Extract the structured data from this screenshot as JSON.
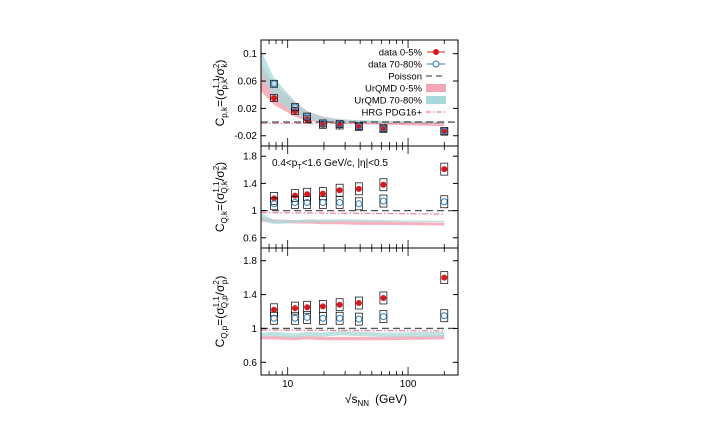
{
  "chart_data": [
    {
      "type": "scatter",
      "ylabel_main": "C",
      "ylabel_sub": "p,k",
      "ylabel_formula": "=(σ",
      "ylabel_sup": "1,1",
      "ylabel_sub2": "p,k",
      "ylabel_tail": "/σ",
      "ylabel_sup2": "2",
      "ylabel_sub3": "k",
      "ylabel_close": ")",
      "ylim": [
        -0.035,
        0.12
      ],
      "yticks": [
        "0.1",
        "0.06",
        "0.02",
        "-0.02"
      ],
      "ytick_values": [
        0.1,
        0.06,
        0.02,
        -0.02
      ],
      "baseline": 0,
      "annotation": "",
      "legend": {
        "data_0_5": "data 0-5%",
        "data_70_80": "data 70-80%",
        "poisson": "Poisson",
        "urqmd_0_5": "UrQMD 0-5%",
        "urqmd_70_80": "UrQMD 70-80%",
        "hrg": "HRG PDG16+"
      },
      "x": [
        7.7,
        11.5,
        14.5,
        19.6,
        27,
        39,
        62.4,
        200
      ],
      "series": [
        {
          "name": "data 0-5%",
          "values": [
            0.035,
            0.016,
            0.004,
            -0.004,
            -0.005,
            -0.007,
            -0.01,
            -0.014
          ]
        },
        {
          "name": "data 70-80%",
          "values": [
            0.056,
            0.022,
            0.008,
            -0.002,
            -0.003,
            -0.006,
            -0.009,
            -0.013
          ]
        }
      ],
      "bands": [
        {
          "name": "UrQMD 0-5%",
          "x": [
            6,
            7.7,
            11.5,
            14.5,
            19.6,
            27,
            39,
            62.4,
            200
          ],
          "low": [
            0.045,
            0.025,
            0.008,
            0.002,
            -0.001,
            -0.002,
            -0.003,
            -0.004,
            -0.006
          ],
          "high": [
            0.085,
            0.055,
            0.03,
            0.016,
            0.008,
            0.004,
            0.002,
            0.001,
            0.0
          ]
        },
        {
          "name": "UrQMD 70-80%",
          "x": [
            6,
            7.7,
            11.5,
            14.5,
            19.6,
            27,
            39,
            62.4,
            200
          ],
          "low": [
            0.07,
            0.035,
            0.012,
            0.004,
            0.0,
            -0.001,
            -0.001,
            -0.002,
            -0.003
          ],
          "high": [
            0.105,
            0.065,
            0.03,
            0.015,
            0.008,
            0.004,
            0.003,
            0.002,
            0.001
          ]
        }
      ],
      "hrg": {
        "x": [
          6,
          200
        ],
        "values": [
          -0.002,
          -0.002
        ]
      }
    },
    {
      "type": "scatter",
      "ylabel_main": "C",
      "ylabel_sub": "Q,k",
      "ylabel_formula": "=(σ",
      "ylabel_sup": "1,1",
      "ylabel_sub2": "Q,k",
      "ylabel_tail": "/σ",
      "ylabel_sup2": "2",
      "ylabel_sub3": "k",
      "ylabel_close": ")",
      "ylim": [
        0.45,
        1.95
      ],
      "yticks": [
        "1.8",
        "1.4",
        "1",
        "0.6"
      ],
      "ytick_values": [
        1.8,
        1.4,
        1.0,
        0.6
      ],
      "baseline": 1,
      "annotation": "0.4<p",
      "annotation_sub": "T",
      "annotation_tail": "<1.6 GeV/c, |η|<0.5",
      "x": [
        7.7,
        11.5,
        14.5,
        19.6,
        27,
        39,
        62.4,
        200
      ],
      "series": [
        {
          "name": "data 0-5%",
          "values": [
            1.18,
            1.22,
            1.24,
            1.25,
            1.3,
            1.32,
            1.38,
            1.61
          ]
        },
        {
          "name": "data 70-80%",
          "values": [
            1.1,
            1.12,
            1.12,
            1.12,
            1.12,
            1.1,
            1.14,
            1.13
          ]
        }
      ],
      "bands": [
        {
          "name": "UrQMD 0-5%",
          "x": [
            6,
            7.7,
            11.5,
            14.5,
            19.6,
            27,
            39,
            62.4,
            200
          ],
          "low": [
            0.84,
            0.82,
            0.81,
            0.81,
            0.8,
            0.8,
            0.79,
            0.79,
            0.78
          ],
          "high": [
            0.9,
            0.87,
            0.86,
            0.86,
            0.85,
            0.85,
            0.84,
            0.84,
            0.82
          ]
        },
        {
          "name": "UrQMD 70-80%",
          "x": [
            6,
            7.7,
            11.5,
            14.5,
            19.6,
            27,
            39,
            62.4,
            200
          ],
          "low": [
            0.86,
            0.8,
            0.82,
            0.83,
            0.83,
            0.84,
            0.84,
            0.84,
            0.83
          ],
          "high": [
            0.96,
            0.86,
            0.86,
            0.87,
            0.87,
            0.87,
            0.87,
            0.86,
            0.85
          ]
        }
      ],
      "hrg": {
        "x": [
          6,
          200
        ],
        "values": [
          0.97,
          0.95
        ]
      }
    },
    {
      "type": "scatter",
      "ylabel_main": "C",
      "ylabel_sub": "Q,p",
      "ylabel_formula": "=(σ",
      "ylabel_sup": "1,1",
      "ylabel_sub2": "Q,p",
      "ylabel_tail": "/σ",
      "ylabel_sup2": "2",
      "ylabel_sub3": "p",
      "ylabel_close": ")",
      "ylim": [
        0.45,
        1.95
      ],
      "yticks": [
        "1.8",
        "1.4",
        "1",
        "0.6"
      ],
      "ytick_values": [
        1.8,
        1.4,
        1.0,
        0.6
      ],
      "baseline": 1,
      "annotation": "",
      "x": [
        7.7,
        11.5,
        14.5,
        19.6,
        27,
        39,
        62.4,
        200
      ],
      "series": [
        {
          "name": "data 0-5%",
          "values": [
            1.22,
            1.24,
            1.25,
            1.26,
            1.28,
            1.3,
            1.36,
            1.6
          ]
        },
        {
          "name": "data 70-80%",
          "values": [
            1.12,
            1.12,
            1.13,
            1.12,
            1.12,
            1.11,
            1.14,
            1.15
          ]
        }
      ],
      "bands": [
        {
          "name": "UrQMD 0-5%",
          "x": [
            6,
            7.7,
            11.5,
            14.5,
            19.6,
            27,
            39,
            62.4,
            200
          ],
          "low": [
            0.87,
            0.87,
            0.86,
            0.87,
            0.86,
            0.86,
            0.86,
            0.86,
            0.87
          ],
          "high": [
            0.91,
            0.91,
            0.9,
            0.91,
            0.9,
            0.9,
            0.9,
            0.9,
            0.92
          ]
        },
        {
          "name": "UrQMD 70-80%",
          "x": [
            6,
            7.7,
            11.5,
            14.5,
            19.6,
            27,
            39,
            62.4,
            200
          ],
          "low": [
            0.9,
            0.91,
            0.89,
            0.91,
            0.9,
            0.92,
            0.91,
            0.9,
            0.9
          ],
          "high": [
            0.95,
            0.96,
            0.94,
            0.96,
            0.95,
            0.97,
            0.96,
            0.95,
            0.96
          ]
        }
      ],
      "hrg": {
        "x": [
          6,
          200
        ],
        "values": [
          0.98,
          0.97
        ]
      }
    }
  ],
  "x_axis": {
    "label_prefix": "√s",
    "label_sub": "NN",
    "label_unit": "(GeV)",
    "scale": "log",
    "xlim": [
      6,
      260
    ],
    "tick_labels": [
      "10",
      "100"
    ],
    "tick_values": [
      10,
      100
    ]
  },
  "colors": {
    "data_0_5": "#d7191c",
    "data_70_80": "#2b7bba",
    "urqmd_0_5": "#f4a6b4",
    "urqmd_70_80": "#a8d8d8",
    "hrg": "#e8859a",
    "poisson": "#555555",
    "syst_box": "#000000"
  }
}
